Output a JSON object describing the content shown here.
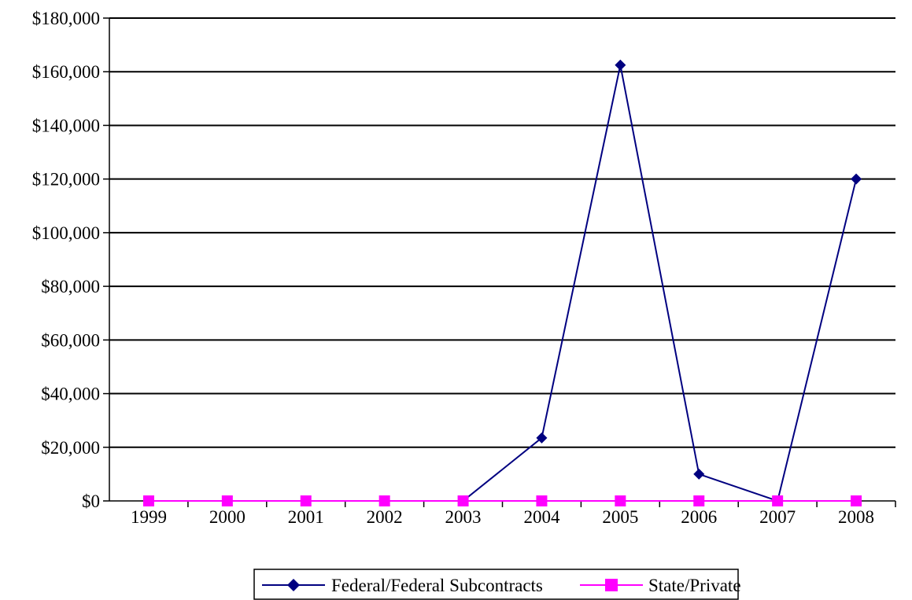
{
  "chart_data": {
    "type": "line",
    "title": "",
    "xlabel": "",
    "ylabel": "",
    "categories": [
      "1999",
      "2000",
      "2001",
      "2002",
      "2003",
      "2004",
      "2005",
      "2006",
      "2007",
      "2008"
    ],
    "ylim": [
      0,
      180000
    ],
    "yticks": [
      0,
      20000,
      40000,
      60000,
      80000,
      100000,
      120000,
      140000,
      160000,
      180000
    ],
    "ytick_labels": [
      "$0",
      "$20,000",
      "$40,000",
      "$60,000",
      "$80,000",
      "$100,000",
      "$120,000",
      "$140,000",
      "$160,000",
      "$180,000"
    ],
    "grid": true,
    "legend_position": "bottom",
    "series": [
      {
        "name": "Federal/Federal Subcontracts",
        "color": "#000080",
        "marker": "diamond",
        "values": [
          0,
          0,
          0,
          0,
          0,
          23500,
          162500,
          10000,
          0,
          120000
        ]
      },
      {
        "name": "State/Private",
        "color": "#FF00FF",
        "marker": "square",
        "values": [
          0,
          0,
          0,
          0,
          0,
          0,
          0,
          0,
          0,
          0
        ]
      }
    ]
  }
}
